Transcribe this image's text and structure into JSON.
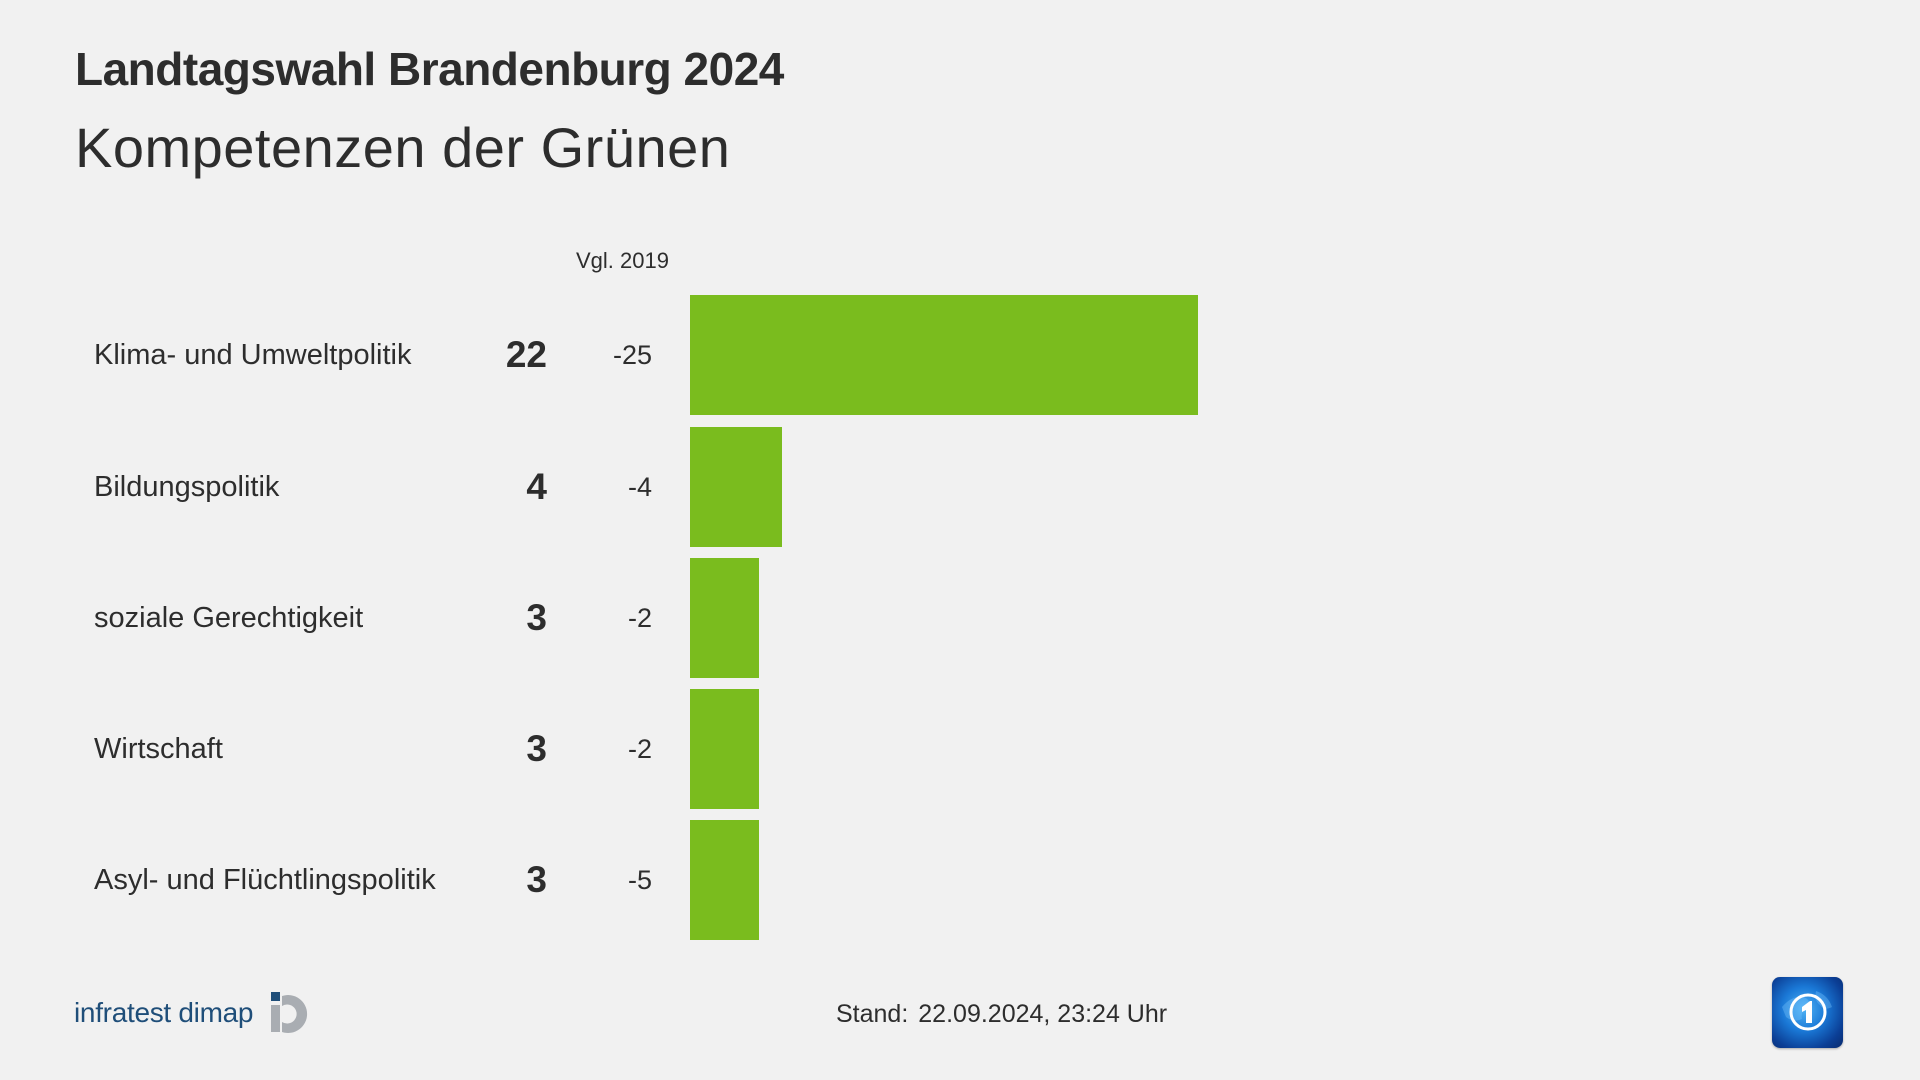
{
  "header": {
    "title": "Landtagswahl Brandenburg 2024",
    "subtitle": "Kompetenzen der Grünen"
  },
  "columns": {
    "comparison_label": "Vgl. 2019"
  },
  "rows": [
    {
      "label": "Klima- und Umweltpolitik",
      "value": "22",
      "diff": "-25"
    },
    {
      "label": "Bildungspolitik",
      "value": "4",
      "diff": "-4"
    },
    {
      "label": "soziale Gerechtigkeit",
      "value": "3",
      "diff": "-2"
    },
    {
      "label": "Wirtschaft",
      "value": "3",
      "diff": "-2"
    },
    {
      "label": "Asyl- und Flüchtlingspolitik",
      "value": "3",
      "diff": "-5"
    }
  ],
  "footer": {
    "source_brand": "infratest dimap",
    "stand_label": "Stand:",
    "stand_value": "22.09.2024, 23:24 Uhr",
    "broadcaster_icon": "ard-tagesschau-logo-icon"
  },
  "colors": {
    "bar": "#7abc1e",
    "background": "#f1f1f1",
    "text": "#2d2d2d",
    "brand_blue": "#1f4e79"
  },
  "chart_data": {
    "type": "bar",
    "orientation": "horizontal",
    "title": "Landtagswahl Brandenburg 2024",
    "subtitle": "Kompetenzen der Grünen",
    "categories": [
      "Klima- und Umweltpolitik",
      "Bildungspolitik",
      "soziale Gerechtigkeit",
      "Wirtschaft",
      "Asyl- und Flüchtlingspolitik"
    ],
    "series": [
      {
        "name": "2024",
        "values": [
          22,
          4,
          3,
          3,
          3
        ]
      },
      {
        "name": "Vgl. 2019",
        "values": [
          -25,
          -4,
          -2,
          -2,
          -5
        ]
      }
    ],
    "xlabel": "",
    "ylabel": "",
    "grid": false,
    "legend": "none",
    "bar_color": "#7abc1e"
  }
}
